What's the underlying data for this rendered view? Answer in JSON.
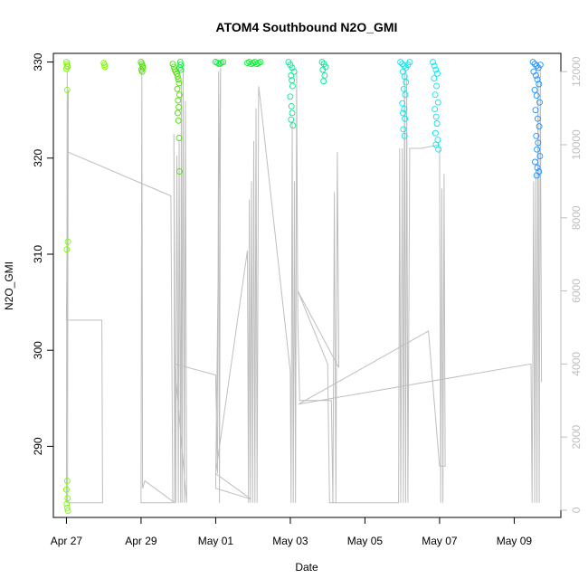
{
  "chart_data": {
    "type": "scatter",
    "title": "ATOM4 Southbound N2O_GMI",
    "xlabel": "Date",
    "ylabel": "N2O_GMI",
    "x_ticks": [
      {
        "x": 0,
        "label": "Apr 27"
      },
      {
        "x": 2,
        "label": "Apr 29"
      },
      {
        "x": 4,
        "label": "May 01"
      },
      {
        "x": 6,
        "label": "May 03"
      },
      {
        "x": 8,
        "label": "May 05"
      },
      {
        "x": 10,
        "label": "May 07"
      },
      {
        "x": 12,
        "label": "May 09"
      }
    ],
    "y_ticks": [
      290,
      300,
      310,
      320,
      330
    ],
    "y2_ticks": [
      0,
      2000,
      4000,
      6000,
      8000,
      10000,
      12000
    ],
    "xlim": [
      -0.35,
      13.25
    ],
    "ylim": [
      282.6,
      330.9
    ],
    "y2lim": [
      -200,
      12500
    ],
    "grid": false,
    "legend": "none",
    "colors": {
      "altitude_line": "#bebebe",
      "right_axis": "#bebebe",
      "frame": "#000000"
    },
    "series": [
      {
        "color": "#7CFC00",
        "points": [
          [
            0.0,
            330.0
          ],
          [
            0.01,
            329.8
          ],
          [
            0.02,
            329.6
          ],
          [
            0.03,
            329.5
          ],
          [
            0.0,
            329.3
          ],
          [
            0.02,
            327.1
          ],
          [
            0.04,
            311.3
          ],
          [
            0.01,
            310.5
          ],
          [
            0.02,
            286.4
          ],
          [
            0.0,
            285.5
          ],
          [
            0.03,
            284.6
          ],
          [
            0.01,
            284.0
          ],
          [
            0.02,
            283.6
          ],
          [
            0.04,
            283.3
          ],
          [
            1.0,
            329.9
          ],
          [
            1.02,
            329.7
          ],
          [
            1.03,
            329.5
          ]
        ]
      },
      {
        "color": "#4CE000",
        "points": [
          [
            2.0,
            330.0
          ],
          [
            2.02,
            329.8
          ],
          [
            2.04,
            329.6
          ],
          [
            2.05,
            329.4
          ],
          [
            2.01,
            329.2
          ],
          [
            2.03,
            329.0
          ],
          [
            2.85,
            329.8
          ],
          [
            2.88,
            329.5
          ],
          [
            2.9,
            329.2
          ],
          [
            2.93,
            329.0
          ],
          [
            2.96,
            328.8
          ],
          [
            2.98,
            328.5
          ],
          [
            3.0,
            328.2
          ],
          [
            3.02,
            327.8
          ],
          [
            2.97,
            327.2
          ],
          [
            3.03,
            326.6
          ],
          [
            2.99,
            326.0
          ],
          [
            3.01,
            325.3
          ],
          [
            2.98,
            324.7
          ],
          [
            3.0,
            323.9
          ],
          [
            3.02,
            322.1
          ],
          [
            3.03,
            318.6
          ]
        ]
      },
      {
        "color": "#00F030",
        "points": [
          [
            3.05,
            330.0
          ],
          [
            3.06,
            329.7
          ],
          [
            3.04,
            329.4
          ],
          [
            3.07,
            329.2
          ],
          [
            4.0,
            330.0
          ],
          [
            4.05,
            329.9
          ],
          [
            4.1,
            329.8
          ],
          [
            4.15,
            329.9
          ],
          [
            4.2,
            330.0
          ],
          [
            4.85,
            329.9
          ],
          [
            4.9,
            330.0
          ],
          [
            4.95,
            329.8
          ],
          [
            5.0,
            329.9
          ],
          [
            5.05,
            330.0
          ],
          [
            5.1,
            329.8
          ],
          [
            5.15,
            329.9
          ],
          [
            5.2,
            330.0
          ]
        ]
      },
      {
        "color": "#00E890",
        "points": [
          [
            5.95,
            330.0
          ],
          [
            6.0,
            329.7
          ],
          [
            6.05,
            329.4
          ],
          [
            6.1,
            329.0
          ],
          [
            6.02,
            328.6
          ],
          [
            6.04,
            328.1
          ],
          [
            6.06,
            327.5
          ],
          [
            6.0,
            326.4
          ],
          [
            6.03,
            325.4
          ],
          [
            6.05,
            324.7
          ],
          [
            6.02,
            324.0
          ],
          [
            6.07,
            323.4
          ],
          [
            6.85,
            330.0
          ],
          [
            6.9,
            329.8
          ],
          [
            6.95,
            329.5
          ],
          [
            6.87,
            329.2
          ],
          [
            6.92,
            328.6
          ],
          [
            6.89,
            328.0
          ]
        ]
      },
      {
        "color": "#00E8F0",
        "points": [
          [
            8.95,
            330.0
          ],
          [
            9.0,
            329.8
          ],
          [
            9.05,
            329.6
          ],
          [
            9.1,
            329.4
          ],
          [
            9.15,
            329.7
          ],
          [
            9.2,
            330.0
          ],
          [
            9.02,
            329.0
          ],
          [
            9.06,
            328.5
          ],
          [
            9.1,
            327.9
          ],
          [
            9.04,
            327.2
          ],
          [
            9.08,
            326.6
          ],
          [
            9.0,
            325.7
          ],
          [
            9.05,
            325.1
          ],
          [
            9.02,
            324.7
          ],
          [
            9.07,
            324.1
          ],
          [
            9.03,
            323.0
          ],
          [
            9.06,
            322.3
          ],
          [
            9.82,
            330.0
          ],
          [
            9.86,
            329.6
          ],
          [
            9.9,
            329.2
          ],
          [
            9.94,
            328.8
          ],
          [
            9.85,
            328.3
          ],
          [
            9.92,
            327.5
          ],
          [
            9.88,
            326.6
          ],
          [
            9.96,
            325.8
          ],
          [
            9.87,
            325.1
          ],
          [
            9.91,
            324.3
          ],
          [
            9.93,
            323.6
          ],
          [
            9.89,
            322.6
          ],
          [
            9.95,
            321.9
          ],
          [
            9.9,
            321.4
          ],
          [
            9.97,
            320.9
          ]
        ]
      },
      {
        "color": "#1E90FF",
        "points": [
          [
            12.5,
            330.0
          ],
          [
            12.55,
            329.8
          ],
          [
            12.6,
            329.6
          ],
          [
            12.65,
            329.4
          ],
          [
            12.7,
            329.7
          ],
          [
            12.52,
            329.0
          ],
          [
            12.58,
            328.6
          ],
          [
            12.62,
            328.2
          ],
          [
            12.66,
            327.7
          ],
          [
            12.55,
            327.1
          ],
          [
            12.6,
            326.5
          ],
          [
            12.68,
            325.8
          ],
          [
            12.57,
            325.0
          ],
          [
            12.63,
            324.1
          ],
          [
            12.67,
            323.3
          ],
          [
            12.59,
            322.3
          ],
          [
            12.64,
            321.6
          ],
          [
            12.61,
            320.9
          ],
          [
            12.69,
            320.2
          ],
          [
            12.56,
            319.6
          ],
          [
            12.62,
            319.0
          ],
          [
            12.66,
            318.6
          ],
          [
            12.6,
            318.2
          ]
        ]
      }
    ],
    "altitude_trace": [
      [
        0.0,
        200
      ],
      [
        0.02,
        12000
      ],
      [
        0.03,
        2600
      ],
      [
        0.05,
        11500
      ],
      [
        0.0,
        5200
      ],
      [
        0.95,
        5200
      ],
      [
        0.97,
        200
      ],
      [
        0.03,
        200
      ],
      [
        0.04,
        9800
      ],
      [
        2.8,
        8600
      ],
      [
        2.85,
        200
      ],
      [
        2.0,
        200
      ],
      [
        2.02,
        12000
      ],
      [
        2.04,
        600
      ],
      [
        2.1,
        800
      ],
      [
        2.9,
        200
      ],
      [
        2.88,
        10300
      ],
      [
        2.93,
        200
      ],
      [
        2.96,
        9700
      ],
      [
        3.0,
        200
      ],
      [
        3.02,
        10100
      ],
      [
        3.06,
        200
      ],
      [
        3.08,
        11700
      ],
      [
        3.1,
        200
      ],
      [
        3.13,
        12100
      ],
      [
        3.16,
        200
      ],
      [
        3.19,
        11200
      ],
      [
        3.22,
        200
      ],
      [
        2.9,
        4000
      ],
      [
        4.0,
        3700
      ],
      [
        4.05,
        1000
      ],
      [
        4.08,
        12000
      ],
      [
        4.1,
        200
      ],
      [
        4.13,
        12100
      ],
      [
        4.0,
        600
      ],
      [
        4.95,
        300
      ],
      [
        4.0,
        1000
      ],
      [
        4.85,
        7100
      ],
      [
        4.88,
        200
      ],
      [
        4.9,
        8500
      ],
      [
        4.93,
        200
      ],
      [
        4.96,
        9000
      ],
      [
        4.99,
        200
      ],
      [
        5.02,
        10100
      ],
      [
        5.05,
        200
      ],
      [
        5.08,
        11000
      ],
      [
        5.11,
        200
      ],
      [
        5.15,
        11600
      ],
      [
        5.2,
        11200
      ],
      [
        6.0,
        3800
      ],
      [
        6.02,
        200
      ],
      [
        6.05,
        10600
      ],
      [
        6.08,
        200
      ],
      [
        6.11,
        9000
      ],
      [
        6.14,
        200
      ],
      [
        6.17,
        12000
      ],
      [
        6.2,
        5200
      ],
      [
        6.25,
        3000
      ],
      [
        7.1,
        3000
      ],
      [
        7.14,
        200
      ],
      [
        7.18,
        8700
      ],
      [
        7.22,
        200
      ],
      [
        7.26,
        9800
      ],
      [
        7.3,
        3900
      ],
      [
        6.2,
        6000
      ],
      [
        7.0,
        4000
      ],
      [
        7.05,
        200
      ],
      [
        8.9,
        200
      ],
      [
        8.93,
        9900
      ],
      [
        8.96,
        200
      ],
      [
        9.0,
        9900
      ],
      [
        9.03,
        200
      ],
      [
        9.06,
        12100
      ],
      [
        9.09,
        200
      ],
      [
        9.12,
        11900
      ],
      [
        9.15,
        200
      ],
      [
        9.2,
        9900
      ],
      [
        9.5,
        9900
      ],
      [
        10.0,
        10000
      ],
      [
        10.03,
        200
      ],
      [
        10.06,
        8800
      ],
      [
        10.09,
        200
      ],
      [
        10.12,
        9200
      ],
      [
        10.15,
        1200
      ],
      [
        10.0,
        1200
      ],
      [
        9.7,
        4900
      ],
      [
        6.22,
        2900
      ],
      [
        12.45,
        4000
      ],
      [
        12.48,
        200
      ],
      [
        12.52,
        9000
      ],
      [
        12.55,
        200
      ],
      [
        12.58,
        9200
      ],
      [
        12.61,
        200
      ],
      [
        12.64,
        12000
      ],
      [
        12.67,
        200
      ],
      [
        12.7,
        12100
      ],
      [
        12.73,
        3500
      ]
    ]
  }
}
